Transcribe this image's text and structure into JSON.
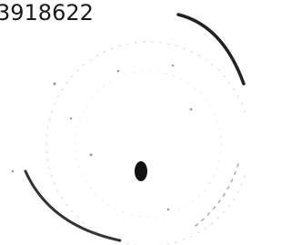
{
  "stamp_number": "3918622"
}
